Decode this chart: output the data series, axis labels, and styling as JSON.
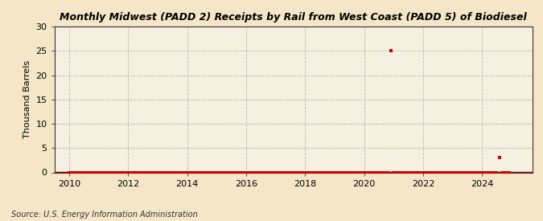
{
  "title": "Monthly Midwest (PADD 2) Receipts by Rail from West Coast (PADD 5) of Biodiesel",
  "ylabel": "Thousand Barrels",
  "source": "Source: U.S. Energy Information Administration",
  "background_color": "#f5e6c8",
  "plot_background_color": "#f5f0e0",
  "xlim": [
    2009.5,
    2025.7
  ],
  "ylim": [
    0,
    30
  ],
  "yticks": [
    0,
    5,
    10,
    15,
    20,
    25,
    30
  ],
  "xticks": [
    2010,
    2012,
    2014,
    2016,
    2018,
    2020,
    2022,
    2024
  ],
  "line_color": "#8b0000",
  "marker_color": "#cc0000",
  "data_x": [
    2010.0,
    2010.083,
    2010.167,
    2010.25,
    2010.333,
    2010.417,
    2010.5,
    2010.583,
    2010.667,
    2010.75,
    2010.833,
    2010.917,
    2011.0,
    2011.083,
    2011.167,
    2011.25,
    2011.333,
    2011.417,
    2011.5,
    2011.583,
    2011.667,
    2011.75,
    2011.833,
    2011.917,
    2012.0,
    2012.083,
    2012.167,
    2012.25,
    2012.333,
    2012.417,
    2012.5,
    2012.583,
    2012.667,
    2012.75,
    2012.833,
    2012.917,
    2013.0,
    2013.083,
    2013.167,
    2013.25,
    2013.333,
    2013.417,
    2013.5,
    2013.583,
    2013.667,
    2013.75,
    2013.833,
    2013.917,
    2014.0,
    2014.083,
    2014.167,
    2014.25,
    2014.333,
    2014.417,
    2014.5,
    2014.583,
    2014.667,
    2014.75,
    2014.833,
    2014.917,
    2015.0,
    2015.083,
    2015.167,
    2015.25,
    2015.333,
    2015.417,
    2015.5,
    2015.583,
    2015.667,
    2015.75,
    2015.833,
    2015.917,
    2016.0,
    2016.083,
    2016.167,
    2016.25,
    2016.333,
    2016.417,
    2016.5,
    2016.583,
    2016.667,
    2016.75,
    2016.833,
    2016.917,
    2017.0,
    2017.083,
    2017.167,
    2017.25,
    2017.333,
    2017.417,
    2017.5,
    2017.583,
    2017.667,
    2017.75,
    2017.833,
    2017.917,
    2018.0,
    2018.083,
    2018.167,
    2018.25,
    2018.333,
    2018.417,
    2018.5,
    2018.583,
    2018.667,
    2018.75,
    2018.833,
    2018.917,
    2019.0,
    2019.083,
    2019.167,
    2019.25,
    2019.333,
    2019.417,
    2019.5,
    2019.583,
    2019.667,
    2019.75,
    2019.833,
    2019.917,
    2020.0,
    2020.083,
    2020.167,
    2020.25,
    2020.333,
    2020.417,
    2020.5,
    2020.583,
    2020.667,
    2020.75,
    2020.833,
    2020.917,
    2021.0,
    2021.083,
    2021.167,
    2021.25,
    2021.333,
    2021.417,
    2021.5,
    2021.583,
    2021.667,
    2021.75,
    2021.833,
    2021.917,
    2022.0,
    2022.083,
    2022.167,
    2022.25,
    2022.333,
    2022.417,
    2022.5,
    2022.583,
    2022.667,
    2022.75,
    2022.833,
    2022.917,
    2023.0,
    2023.083,
    2023.167,
    2023.25,
    2023.333,
    2023.417,
    2023.5,
    2023.583,
    2023.667,
    2023.75,
    2023.833,
    2023.917,
    2024.0,
    2024.083,
    2024.167,
    2024.25,
    2024.333,
    2024.417,
    2024.5,
    2024.583,
    2024.667,
    2024.75,
    2024.833,
    2024.917
  ],
  "data_y": [
    0,
    0,
    0,
    0,
    0,
    0,
    0,
    0,
    0,
    0,
    0,
    0,
    0,
    0,
    0,
    0,
    0,
    0,
    0,
    0,
    0,
    0,
    0,
    0,
    0,
    0,
    0,
    0,
    0,
    0,
    0,
    0,
    0,
    0,
    0,
    0,
    0,
    0,
    0,
    0,
    0,
    0,
    0,
    0,
    0,
    0,
    0,
    0,
    0,
    0,
    0,
    0,
    0,
    0,
    0,
    0,
    0,
    0,
    0,
    0,
    0,
    0,
    0,
    0,
    0,
    0,
    0,
    0,
    0,
    0,
    0,
    0,
    0,
    0,
    0,
    0,
    0,
    0,
    0,
    0,
    0,
    0,
    0,
    0,
    0,
    0,
    0,
    0,
    0,
    0,
    0,
    0,
    0,
    0,
    0,
    0,
    0,
    0,
    0,
    0,
    0,
    0,
    0,
    0,
    0,
    0,
    0,
    0,
    0,
    0,
    0,
    0,
    0,
    0,
    0,
    0,
    0,
    0,
    0,
    0,
    0,
    0,
    0,
    0,
    0,
    0,
    0,
    0,
    0,
    0,
    0,
    25,
    0,
    0,
    0,
    0,
    0,
    0,
    0,
    0,
    0,
    0,
    0,
    0,
    0,
    0,
    0,
    0,
    0,
    0,
    0,
    0,
    0,
    0,
    0,
    0,
    0,
    0,
    0,
    0,
    0,
    0,
    0,
    0,
    0,
    0,
    0,
    0,
    0,
    0,
    0,
    0,
    0,
    0,
    0,
    3,
    0,
    0,
    0,
    0
  ]
}
